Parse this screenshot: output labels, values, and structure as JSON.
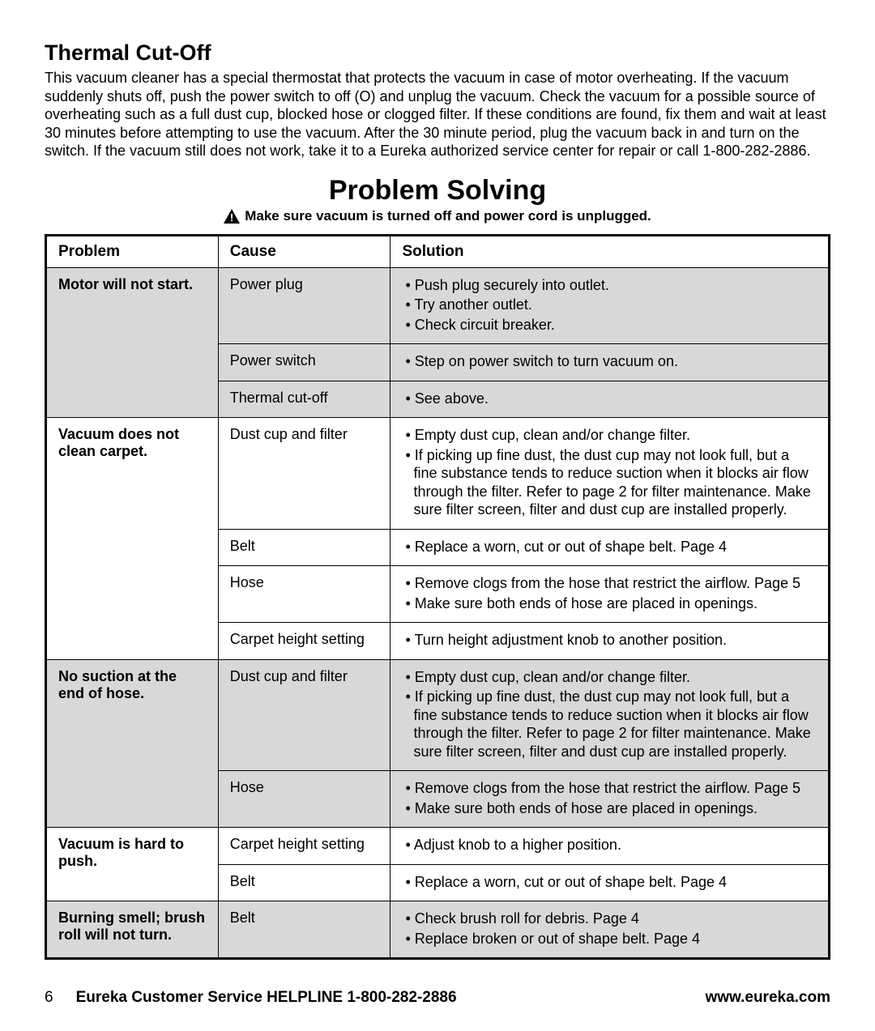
{
  "thermal": {
    "title": "Thermal Cut-Off",
    "body": "This vacuum cleaner has a special thermostat that protects the vacuum in case of motor overheating. If the vacuum suddenly shuts off, push the power switch to off (O) and unplug the vacuum. Check the vacuum for a possible source of overheating such as a full dust cup, blocked hose or clogged filter. If these conditions are found, fix them and wait at least 30 minutes before attempting to use the vacuum. After the 30 minute period, plug the vacuum back in and turn on the switch. If the vacuum still does not work, take it to a Eureka authorized service center for repair or call 1-800-282-2886."
  },
  "problemSolving": {
    "title": "Problem Solving",
    "warning": "Make sure vacuum is turned off and power cord is unplugged.",
    "headers": {
      "problem": "Problem",
      "cause": "Cause",
      "solution": "Solution"
    },
    "groups": [
      {
        "problem": "Motor will not start.",
        "shaded": true,
        "rows": [
          {
            "cause": "Power plug",
            "solutions": [
              "Push plug securely into outlet.",
              "Try another outlet.",
              "Check circuit breaker."
            ]
          },
          {
            "cause": "Power switch",
            "solutions": [
              "Step on power switch to turn vacuum on."
            ]
          },
          {
            "cause": "Thermal cut-off",
            "solutions": [
              "See above."
            ]
          }
        ]
      },
      {
        "problem": "Vacuum does not clean carpet.",
        "shaded": false,
        "rows": [
          {
            "cause": "Dust cup and filter",
            "solutions": [
              "Empty dust cup, clean and/or change filter.",
              "If picking up fine dust, the dust cup may not look full, but a fine substance tends to reduce suction when it blocks air flow through the filter. Refer to page 2 for filter maintenance. Make sure filter screen, filter and dust cup are installed properly."
            ]
          },
          {
            "cause": "Belt",
            "solutions": [
              "Replace a worn, cut or out of shape belt. Page 4"
            ]
          },
          {
            "cause": "Hose",
            "solutions": [
              "Remove clogs from the hose that restrict the airflow. Page 5",
              "Make sure both ends of hose are placed in openings."
            ]
          },
          {
            "cause": "Carpet height setting",
            "solutions": [
              "Turn height adjustment knob to another position."
            ]
          }
        ]
      },
      {
        "problem": "No suction at the end of hose.",
        "shaded": true,
        "rows": [
          {
            "cause": "Dust cup and filter",
            "solutions": [
              "Empty dust cup, clean and/or change filter.",
              "If picking up fine dust, the dust cup may not look full, but a fine substance tends to reduce suction when it blocks air flow through the filter. Refer to page 2 for filter maintenance. Make sure filter screen, filter and dust cup are installed properly."
            ]
          },
          {
            "cause": "Hose",
            "solutions": [
              "Remove clogs from the hose that restrict the airflow. Page 5",
              "Make sure both ends of hose are placed in openings."
            ]
          }
        ]
      },
      {
        "problem": "Vacuum is hard to push.",
        "shaded": false,
        "rows": [
          {
            "cause": "Carpet height setting",
            "solutions": [
              "Adjust knob to a higher position."
            ]
          },
          {
            "cause": "Belt",
            "solutions": [
              "Replace a worn, cut or out of shape belt. Page 4"
            ]
          }
        ]
      },
      {
        "problem": "Burning smell; brush roll will not turn.",
        "shaded": true,
        "rows": [
          {
            "cause": "Belt",
            "solutions": [
              "Check brush roll for debris. Page 4",
              "Replace broken or out of shape belt. Page 4"
            ]
          }
        ]
      }
    ]
  },
  "footer": {
    "pageNumber": "6",
    "helpline": "Eureka Customer Service HELPLINE 1-800-282-2886",
    "url": "www.eureka.com"
  },
  "style": {
    "shadedBg": "#d8d8d8",
    "borderColor": "#000000",
    "pageWidth": 1080
  }
}
